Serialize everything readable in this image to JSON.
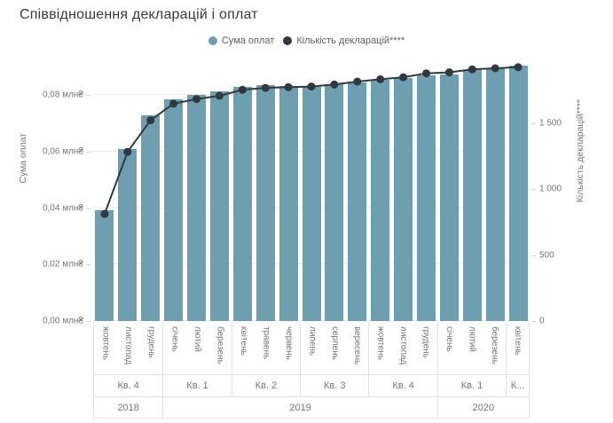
{
  "title": "Співвідношення декларацій і оплат",
  "legend": [
    {
      "label": "Сума оплат",
      "color": "#6d9fb0"
    },
    {
      "label": "Кількість декларацій****",
      "color": "#31393f"
    }
  ],
  "chart_data": {
    "type": "combo",
    "categories": [
      "жовтень",
      "листопад",
      "грудень",
      "січень",
      "лютий",
      "березень",
      "квітень",
      "травень",
      "червень",
      "липень",
      "серпень",
      "вересень",
      "жовтень",
      "листопад",
      "грудень",
      "січень",
      "лютий",
      "березень",
      "квітень"
    ],
    "series": [
      {
        "name": "Сума оплат",
        "type": "bar",
        "axis": "left",
        "unit": "млн₴",
        "color": "#6d9fb0",
        "values": [
          0.0394,
          0.0608,
          0.073,
          0.0786,
          0.0802,
          0.0812,
          0.0828,
          0.0834,
          0.0831,
          0.0829,
          0.0838,
          0.0846,
          0.0853,
          0.086,
          0.087,
          0.0872,
          0.0888,
          0.0896,
          0.0905
        ]
      },
      {
        "name": "Кількість декларацій****",
        "type": "line",
        "axis": "right",
        "color": "#31393f",
        "values": [
          810,
          1280,
          1520,
          1645,
          1680,
          1705,
          1750,
          1765,
          1770,
          1775,
          1790,
          1812,
          1830,
          1845,
          1875,
          1882,
          1905,
          1913,
          1921
        ]
      }
    ],
    "left_axis": {
      "title": "Сума оплат",
      "max": 0.0917,
      "ticks": [
        {
          "label": "0,00 млн₴",
          "value": 0
        },
        {
          "label": "0,02 млн₴",
          "value": 0.02
        },
        {
          "label": "0,04 млн₴",
          "value": 0.04
        },
        {
          "label": "0,06 млн₴",
          "value": 0.06
        },
        {
          "label": "0,08 млн₴",
          "value": 0.08
        }
      ]
    },
    "right_axis": {
      "title": "Кількість декларацій****",
      "max": 1960,
      "ticks": [
        {
          "label": "0",
          "value": 0
        },
        {
          "label": "500",
          "value": 500
        },
        {
          "label": "1 000",
          "value": 1000
        },
        {
          "label": "1 500",
          "value": 1500
        }
      ]
    },
    "quarter_groups": [
      {
        "label": "Кв. 4",
        "span": 3
      },
      {
        "label": "Кв. 1",
        "span": 3
      },
      {
        "label": "Кв. 2",
        "span": 3
      },
      {
        "label": "Кв. 3",
        "span": 3
      },
      {
        "label": "Кв. 4",
        "span": 3
      },
      {
        "label": "Кв. 1",
        "span": 3
      },
      {
        "label": "К...",
        "span": 1
      }
    ],
    "year_groups": [
      {
        "label": "2018",
        "span": 3
      },
      {
        "label": "2019",
        "span": 12
      },
      {
        "label": "2020",
        "span": 4
      }
    ],
    "grid": true,
    "legend_position": "top-center"
  }
}
